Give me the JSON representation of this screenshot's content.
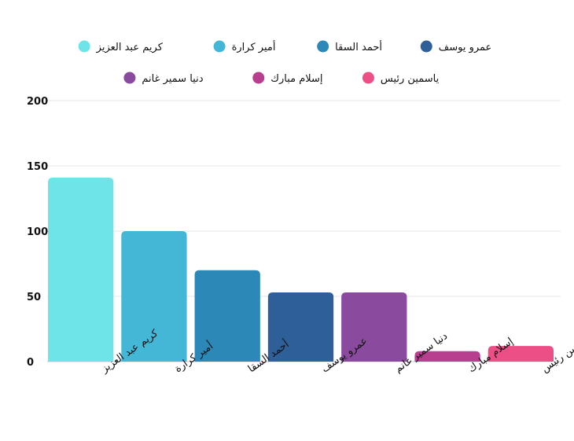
{
  "chart_data": {
    "type": "bar",
    "categories": [
      "كريم عبد العزيز",
      "أمير كرارة",
      "أحمد السقا",
      "عمرو يوسف",
      "دنيا سمير غانم",
      "إسلام مبارك",
      "ياسمين رئيس"
    ],
    "values": [
      141,
      100,
      70,
      53,
      53,
      8,
      12
    ],
    "colors": [
      "#6EE4E8",
      "#44B7D6",
      "#2C88B7",
      "#2E5F98",
      "#8A4A9E",
      "#B83F90",
      "#EC4F85"
    ],
    "ylim": [
      0,
      200
    ],
    "yticks": [
      0,
      50,
      100,
      150,
      200
    ],
    "grid": true,
    "legend_position": "top"
  }
}
